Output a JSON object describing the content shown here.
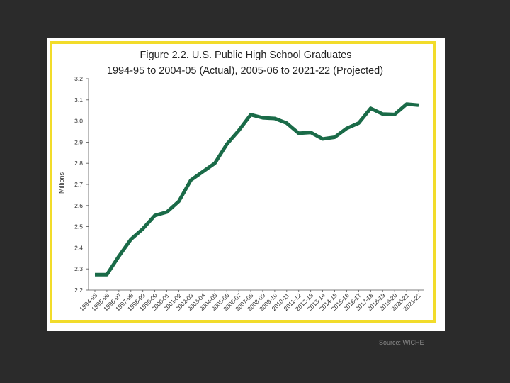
{
  "chart_data": {
    "type": "line",
    "title_line1": "Figure 2.2.  U.S. Public High School Graduates",
    "title_line2": "1994-95 to 2004-05 (Actual), 2005-06 to 2021-22 (Projected)",
    "xlabel": "",
    "ylabel": "Millions",
    "ylim": [
      2.2,
      3.2
    ],
    "yticks": [
      "3.2",
      "3.1",
      "3.0",
      "2.9",
      "2.8",
      "2.7",
      "2.6",
      "2.5",
      "2.4",
      "2.3",
      "2.2"
    ],
    "categories": [
      "1994-95",
      "1995-96",
      "1996-97",
      "1997-98",
      "1998-99",
      "1999-00",
      "2000-01",
      "2001-02",
      "2002-03",
      "2003-04",
      "2004-05",
      "2005-06",
      "2006-07",
      "2007-08",
      "2008-09",
      "2009-10",
      "2010-11",
      "2011-12",
      "2012-13",
      "2013-14",
      "2014-15",
      "2015-16",
      "2016-17",
      "2017-18",
      "2018-19",
      "2019-20",
      "2020-21",
      "2021-22"
    ],
    "series": [
      {
        "name": "U.S. Public High School Graduates",
        "color": "#1a6b48",
        "values": [
          2.273,
          2.273,
          2.36,
          2.44,
          2.49,
          2.553,
          2.569,
          2.62,
          2.72,
          2.76,
          2.8,
          2.89,
          2.955,
          3.03,
          3.015,
          3.012,
          2.99,
          2.942,
          2.946,
          2.915,
          2.923,
          2.965,
          2.99,
          3.06,
          3.033,
          3.031,
          3.08,
          3.075
        ]
      }
    ]
  },
  "source": "Source: WICHE",
  "colors": {
    "background": "#2b2b2b",
    "frame": "#f2dc2a",
    "line": "#1a6b48"
  }
}
